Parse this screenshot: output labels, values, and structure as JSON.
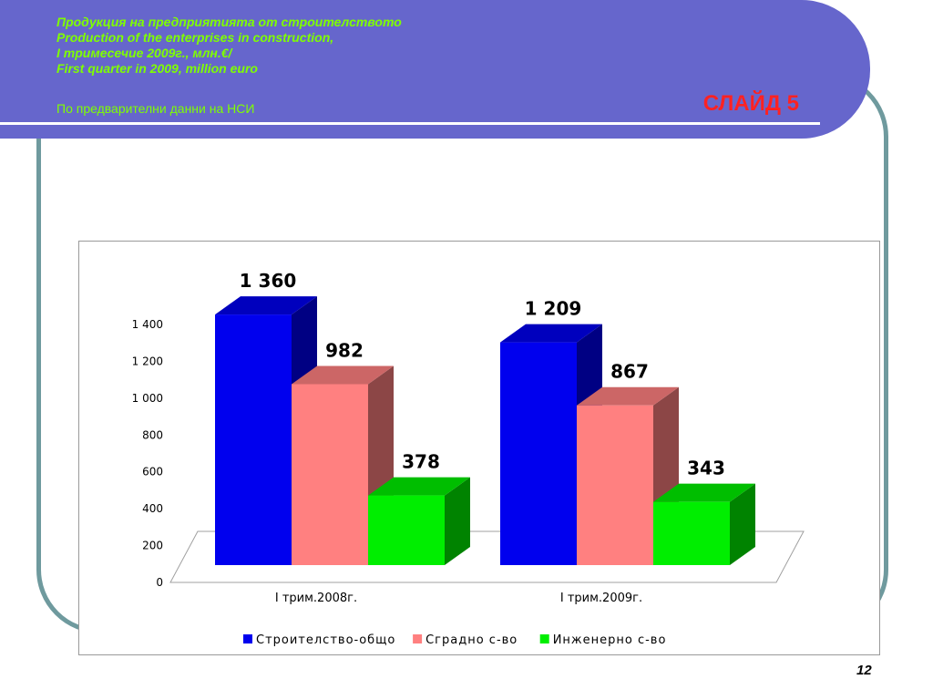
{
  "header": {
    "lines": [
      "Продукция на предприятията от строителството",
      "Production of the enterprises in construction,",
      "I тримесечие 2009г., млн.€/",
      "First quarter in 2009, million euro"
    ],
    "note": "По предварителни данни на НСИ",
    "slide_label": "СЛАЙД 5"
  },
  "page_number": "12",
  "colors": {
    "header_band": "#6666cc",
    "header_text": "#7fff00",
    "slide_label": "#ff2222",
    "frame": "#6f9a9e"
  },
  "chart_data": {
    "type": "bar",
    "categories": [
      "I трим.2008г.",
      "I трим.2009г."
    ],
    "series": [
      {
        "name": "Строителство-общо",
        "values": [
          1360,
          1209
        ],
        "labels": [
          "1 360",
          "1 209"
        ],
        "color": "#0000ee"
      },
      {
        "name": "Сградно с-во",
        "values": [
          982,
          867
        ],
        "labels": [
          "982",
          "867"
        ],
        "color": "#ff8080"
      },
      {
        "name": "Инженерно с-во",
        "values": [
          378,
          343
        ],
        "labels": [
          "378",
          "343"
        ],
        "color": "#00ee00"
      }
    ],
    "ylim": [
      0,
      1400
    ],
    "yticks": [
      0,
      200,
      400,
      600,
      800,
      1000,
      1200,
      1400
    ],
    "ytick_labels": [
      "0",
      "200",
      "400",
      "600",
      "800",
      "1 000",
      "1 200",
      "1 400"
    ],
    "legend_position": "bottom",
    "grid": false,
    "three_d": true
  }
}
